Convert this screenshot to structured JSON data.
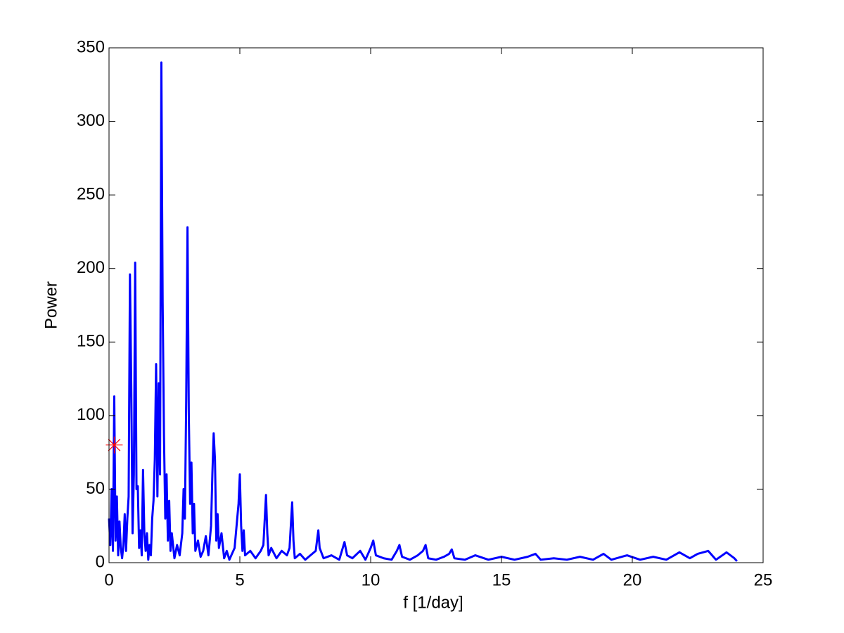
{
  "chart_data": {
    "type": "line",
    "xlabel": "f [1/day]",
    "ylabel": "Power",
    "x": [
      0,
      0.05,
      0.1,
      0.15,
      0.2,
      0.25,
      0.3,
      0.35,
      0.4,
      0.45,
      0.5,
      0.55,
      0.6,
      0.65,
      0.7,
      0.75,
      0.8,
      0.85,
      0.9,
      0.95,
      1.0,
      1.05,
      1.1,
      1.15,
      1.2,
      1.25,
      1.3,
      1.35,
      1.4,
      1.45,
      1.5,
      1.55,
      1.6,
      1.65,
      1.7,
      1.75,
      1.8,
      1.85,
      1.9,
      1.95,
      2.0,
      2.05,
      2.1,
      2.15,
      2.2,
      2.25,
      2.3,
      2.35,
      2.4,
      2.5,
      2.6,
      2.7,
      2.8,
      2.85,
      2.9,
      2.95,
      3.0,
      3.05,
      3.1,
      3.15,
      3.2,
      3.25,
      3.3,
      3.4,
      3.5,
      3.6,
      3.7,
      3.8,
      3.9,
      3.95,
      4.0,
      4.05,
      4.1,
      4.15,
      4.2,
      4.3,
      4.4,
      4.5,
      4.6,
      4.7,
      4.8,
      4.9,
      4.95,
      5.0,
      5.05,
      5.1,
      5.15,
      5.2,
      5.4,
      5.6,
      5.8,
      5.9,
      6.0,
      6.05,
      6.1,
      6.2,
      6.4,
      6.6,
      6.8,
      6.9,
      7.0,
      7.05,
      7.1,
      7.3,
      7.5,
      7.7,
      7.9,
      8.0,
      8.05,
      8.2,
      8.5,
      8.8,
      9.0,
      9.1,
      9.3,
      9.6,
      9.8,
      10.0,
      10.1,
      10.2,
      10.5,
      10.8,
      11.0,
      11.1,
      11.2,
      11.5,
      11.8,
      12.0,
      12.1,
      12.2,
      12.5,
      12.8,
      13.0,
      13.1,
      13.2,
      13.6,
      14.0,
      14.5,
      15.0,
      15.5,
      16.0,
      16.3,
      16.5,
      17.0,
      17.5,
      18.0,
      18.5,
      18.9,
      19.2,
      19.8,
      20.3,
      20.8,
      21.3,
      21.8,
      22.2,
      22.5,
      22.9,
      23.2,
      23.6,
      23.9,
      24.0
    ],
    "series": [
      {
        "color": "#0000ff",
        "values": [
          30,
          12,
          50,
          8,
          113,
          15,
          45,
          5,
          28,
          10,
          3,
          12,
          33,
          8,
          30,
          45,
          196,
          120,
          20,
          60,
          204,
          50,
          52,
          10,
          22,
          5,
          63,
          20,
          8,
          20,
          2,
          12,
          5,
          30,
          42,
          70,
          135,
          45,
          122,
          60,
          340,
          177,
          87,
          30,
          60,
          15,
          42,
          8,
          20,
          3,
          12,
          5,
          20,
          50,
          30,
          110,
          228,
          100,
          40,
          68,
          20,
          40,
          8,
          15,
          4,
          8,
          18,
          5,
          25,
          60,
          88,
          70,
          15,
          33,
          10,
          20,
          3,
          8,
          2,
          6,
          10,
          30,
          40,
          60,
          25,
          8,
          22,
          5,
          8,
          3,
          8,
          12,
          46,
          20,
          5,
          10,
          3,
          8,
          5,
          10,
          41,
          15,
          3,
          6,
          2,
          5,
          8,
          22,
          10,
          3,
          5,
          2,
          14,
          5,
          3,
          8,
          2,
          10,
          15,
          5,
          3,
          2,
          8,
          12,
          4,
          2,
          5,
          8,
          12,
          3,
          2,
          4,
          6,
          9,
          3,
          2,
          5,
          2,
          4,
          2,
          4,
          6,
          2,
          3,
          2,
          4,
          2,
          6,
          2,
          5,
          2,
          4,
          2,
          7,
          3,
          6,
          8,
          2,
          7,
          3,
          1
        ]
      }
    ],
    "markers": {
      "x": [
        0.2
      ],
      "y": [
        80
      ],
      "color": "#ff0000"
    },
    "xlim": [
      0,
      25
    ],
    "xticks": [
      0,
      5,
      10,
      15,
      20,
      25
    ],
    "ylim": [
      0,
      350
    ],
    "yticks": [
      0,
      50,
      100,
      150,
      200,
      250,
      300,
      350
    ]
  }
}
